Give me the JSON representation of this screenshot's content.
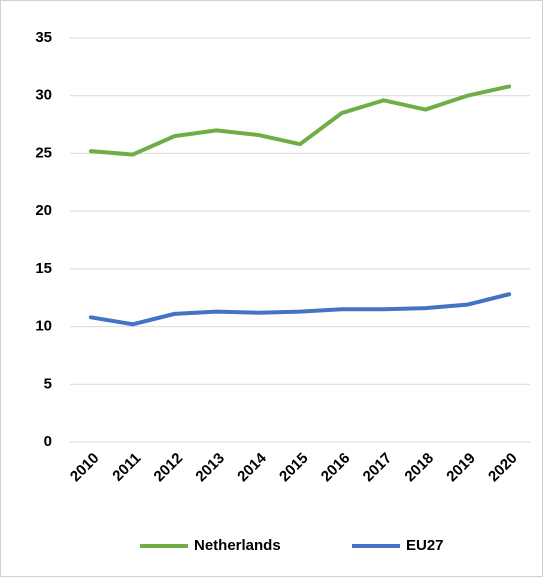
{
  "chart_data": {
    "type": "line",
    "categories": [
      "2010",
      "2011",
      "2012",
      "2013",
      "2014",
      "2015",
      "2016",
      "2017",
      "2018",
      "2019",
      "2020"
    ],
    "series": [
      {
        "name": "Netherlands",
        "color": "#70ad47",
        "values": [
          25.2,
          24.9,
          26.5,
          27.0,
          26.6,
          25.8,
          28.5,
          29.6,
          28.8,
          30.0,
          30.8
        ]
      },
      {
        "name": "EU27",
        "color": "#4472c4",
        "values": [
          10.8,
          10.2,
          11.1,
          11.3,
          11.2,
          11.3,
          11.5,
          11.5,
          11.6,
          11.9,
          12.8
        ]
      }
    ],
    "ylim": [
      0,
      35
    ],
    "yticks": [
      0,
      5,
      10,
      15,
      20,
      25,
      30,
      35
    ],
    "grid": true,
    "legend": "bottom"
  }
}
